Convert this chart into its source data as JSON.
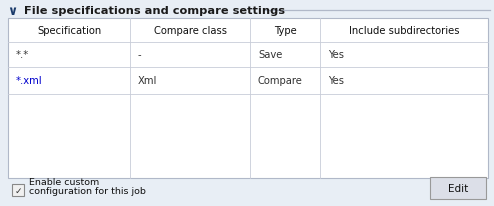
{
  "title": "File specifications and compare settings",
  "panel_bg": "#e8eef5",
  "table_bg": "#ffffff",
  "border_color": "#b0b8c8",
  "text_color": "#111111",
  "col_headers": [
    "Specification",
    "Compare class",
    "Type",
    "Include subdirectories"
  ],
  "rows": [
    [
      "*.*",
      "-",
      "Save",
      "Yes"
    ],
    [
      "*.xml",
      "Xml",
      "Compare",
      "Yes"
    ]
  ],
  "xml_color": "#0000cc",
  "checkbox_label_line1": "Enable custom",
  "checkbox_label_line2": "configuration for this job",
  "button_label": "Edit",
  "divider_color": "#c8ccd8",
  "line_color": "#b0b8c8",
  "chevron_color": "#1a3a6a",
  "title_color": "#1a1a1a"
}
